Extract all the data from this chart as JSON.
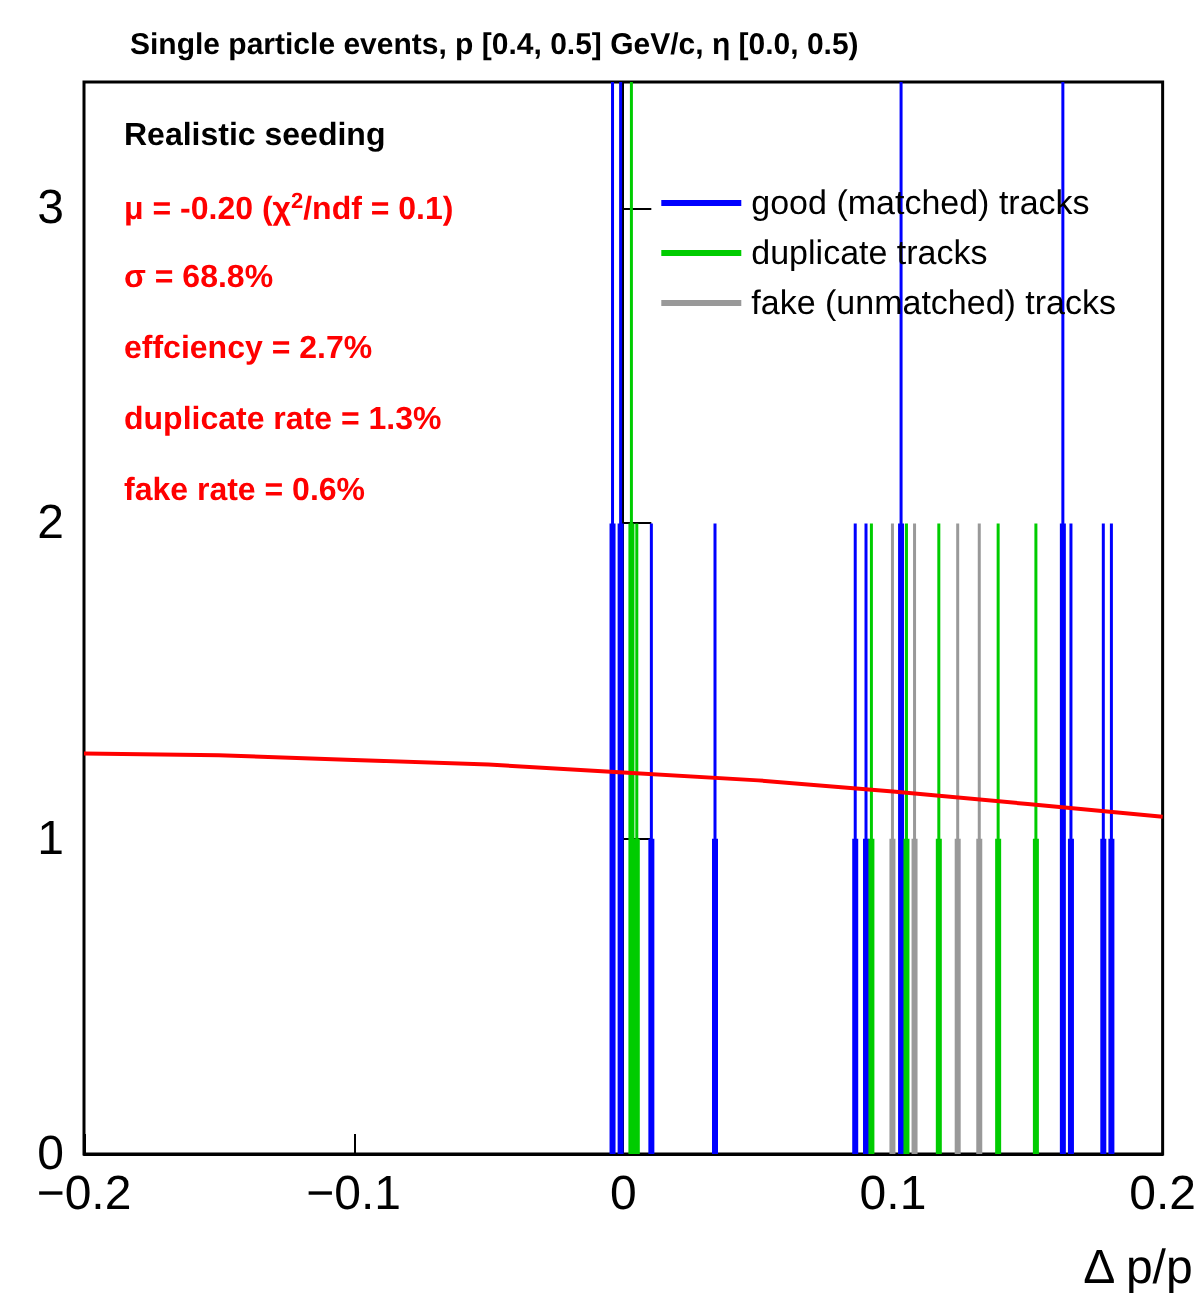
{
  "chart_data": {
    "type": "bar",
    "title": "Single particle events, p [0.4, 0.5] GeV/c, η [0.0, 0.5)",
    "xlabel": "Δ p/p",
    "annotations": [
      "Realistic seeding",
      "μ = -0.20 (χ$^{2}$/ndf = 0.1)",
      "σ = 68.8%",
      "effciency = 2.7%",
      "duplicate rate = 1.3%",
      "fake rate = 0.6%"
    ],
    "series": [
      {
        "name": "good (matched) tracks",
        "color": "#0000ff",
        "x": [
          -0.004,
          -0.001,
          0.0104,
          0.034,
          0.086,
          0.09,
          0.103,
          0.163,
          0.166,
          0.178,
          0.181
        ],
        "values": [
          2,
          2,
          1,
          1,
          1,
          1,
          2,
          2,
          1,
          1,
          1
        ],
        "errors": [
          1.4,
          1.4,
          1,
          1,
          1,
          1,
          1.4,
          1.4,
          1,
          1,
          1
        ]
      },
      {
        "name": "duplicate tracks",
        "color": "#00cc00",
        "x": [
          0.003,
          0.005,
          0.092,
          0.105,
          0.117,
          0.139,
          0.153
        ],
        "values": [
          2,
          1,
          1,
          1,
          1,
          1,
          1
        ],
        "errors": [
          1.4,
          1,
          1,
          1,
          1,
          1,
          1
        ]
      },
      {
        "name": "fake (unmatched) tracks",
        "color": "#999999",
        "x": [
          0.0998,
          0.108,
          0.124,
          0.132
        ],
        "values": [
          1,
          1,
          1,
          1
        ],
        "errors": [
          1,
          1,
          1,
          1
        ]
      },
      {
        "type": "line",
        "color": "#ff0000",
        "x": [
          -0.2,
          -0.15,
          -0.1,
          -0.05,
          0,
          0.05,
          0.1,
          0.15,
          0.2
        ],
        "values": [
          1.27,
          1.265,
          1.25,
          1.235,
          1.21,
          1.185,
          1.15,
          1.11,
          1.07
        ]
      }
    ],
    "xlim": [
      -0.2,
      0.2
    ],
    "xticks": [
      {
        "value": -0.2,
        "label": "−0.2"
      },
      {
        "value": -0.1,
        "label": "−0.1"
      },
      0,
      0.1,
      0.2
    ],
    "ylim": [
      0,
      3.4
    ],
    "yticks": [
      0,
      1,
      2,
      3
    ],
    "legend": "top right"
  }
}
